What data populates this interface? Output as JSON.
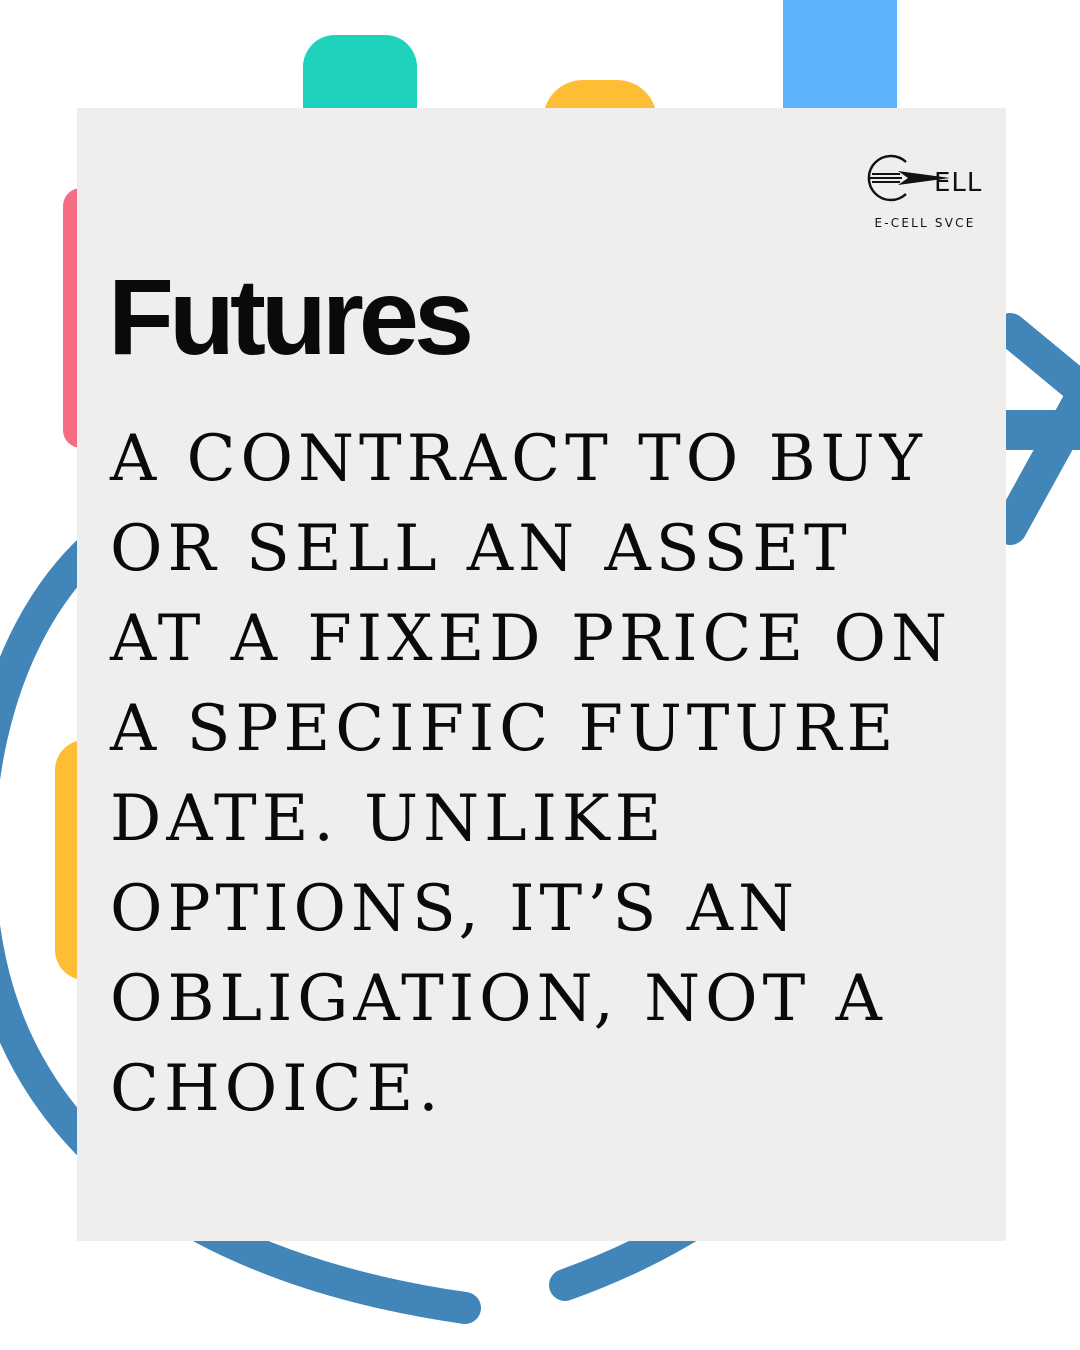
{
  "logo": {
    "wordmark": "ELL",
    "caption": "E-CELL SVCE"
  },
  "title": "Futures",
  "body_text": "A CONTRACT TO BUY\nOR SELL AN ASSET\nAT A FIXED PRICE ON\nA SPECIFIC FUTURE\nDATE. UNLIKE\nOPTIONS, IT’S AN\nOBLIGATION, NOT A\nCHOICE.",
  "colors": {
    "background": "#ffffff",
    "card": "#efeeec",
    "text": "#0a0a0a",
    "teal": "#1dd1bb",
    "yellow": "#fdbd35",
    "light_blue": "#5eb2fc",
    "pink": "#f66c84",
    "dark_blue": "#4285b8"
  }
}
